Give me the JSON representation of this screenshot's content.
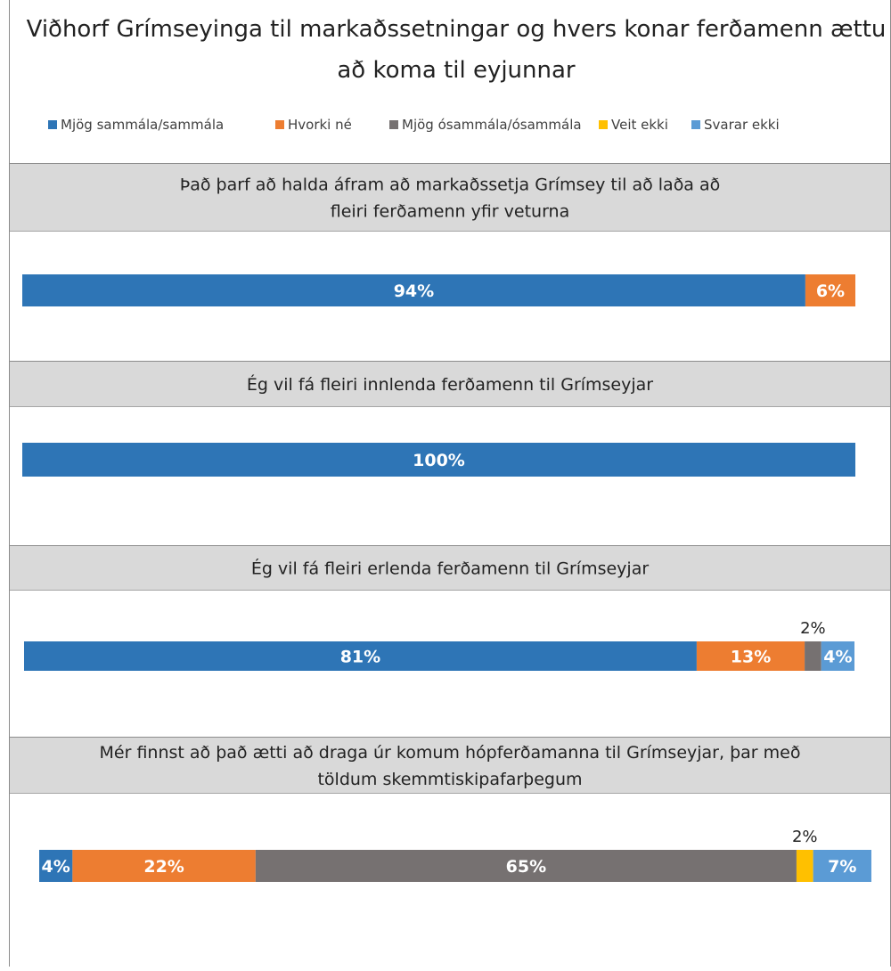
{
  "chart_data": {
    "type": "bar",
    "stacked": true,
    "orientation": "horizontal",
    "title": "Viðhorf Grímseyinga til markaðssetningar og hvers konar ferðamenn ættu að koma til eyjunnar",
    "title_lines": [
      "Viðhorf Grímseyinga til markaðssetningar og hvers konar ferðamenn ættu",
      "að koma til eyjunnar"
    ],
    "unit": "%",
    "legend_position": "top",
    "series": [
      {
        "name": "Mjög sammála/sammála",
        "color": "#2E75B6"
      },
      {
        "name": "Hvorki né",
        "color": "#ED7D31"
      },
      {
        "name": "Mjög ósammála/ósammála",
        "color": "#767171"
      },
      {
        "name": "Veit ekki",
        "color": "#FFC000"
      },
      {
        "name": "Svarar ekki",
        "color": "#5B9BD5"
      }
    ],
    "questions": [
      {
        "label": "Það þarf að halda áfram að markaðssetja Grímsey til að laða að fleiri ferðamenn yfir veturna",
        "label_lines": [
          "Það þarf að halda áfram að markaðssetja Grímsey til að laða að",
          "fleiri ferðamenn yfir veturna"
        ],
        "values": [
          94,
          6,
          0,
          0,
          0
        ]
      },
      {
        "label": "Ég vil fá fleiri innlenda ferðamenn til Grímseyjar",
        "label_lines": [
          "Ég vil fá fleiri innlenda ferðamenn til Grímseyjar"
        ],
        "values": [
          100,
          0,
          0,
          0,
          0
        ]
      },
      {
        "label": "Ég vil fá fleiri erlenda ferðamenn til Grímseyjar",
        "label_lines": [
          "Ég vil fá fleiri erlenda ferðamenn til Grímseyjar"
        ],
        "values": [
          81,
          13,
          2,
          0,
          4
        ]
      },
      {
        "label": "Mér finnst að það ætti að draga úr komum hópferðamanna til Grímseyjar, þar með töldum skemmtiskipafarþegum",
        "label_lines": [
          "Mér finnst að það ætti að draga úr komum hópferðamanna til Grímseyjar, þar með",
          "töldum skemmtiskipafarþegum"
        ],
        "values": [
          4,
          22,
          65,
          2,
          7
        ]
      }
    ]
  }
}
